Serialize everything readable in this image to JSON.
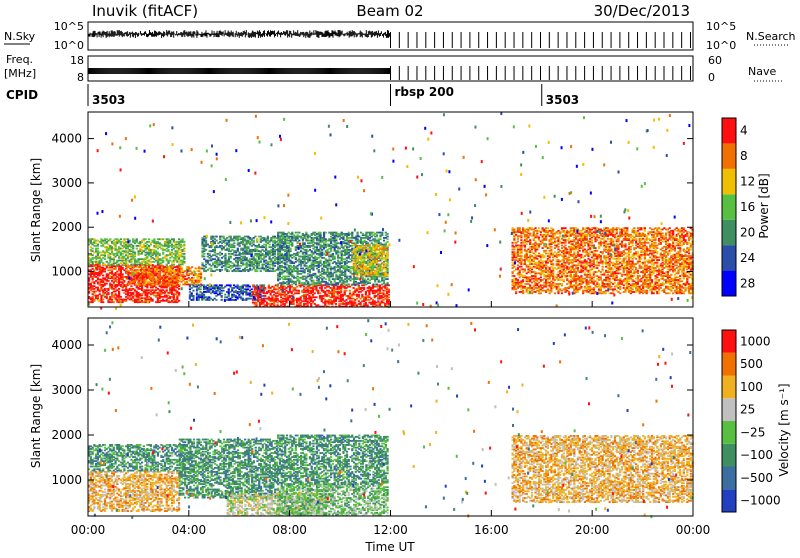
{
  "header": {
    "station": "Inuvik (fitACF)",
    "beam": "Beam 02",
    "date": "30/Dec/2013"
  },
  "top_panels": {
    "nsky_label": "N.Sky",
    "nsky_ticks": [
      "10^5",
      "10^0"
    ],
    "nsky_right_ticks": [
      "10^5",
      "10^0"
    ],
    "nsearch_label": "N.Search",
    "freq_label_1": "Freq.",
    "freq_label_2": "[MHz]",
    "freq_ticks": [
      "18",
      "8"
    ],
    "nave_ticks": [
      "60",
      "0"
    ],
    "nave_label": "Nave",
    "cpid_label": "CPID",
    "cpid_entries": [
      {
        "label": "3503",
        "start_hour": 0.0
      },
      {
        "label": "rbsp 200",
        "start_hour": 12.0
      },
      {
        "label": "3503",
        "start_hour": 18.0
      }
    ]
  },
  "time_axis": {
    "ticks": [
      "00:00",
      "04:00",
      "08:00",
      "12:00",
      "16:00",
      "20:00",
      "00:00"
    ],
    "label": "Time UT"
  },
  "chart_data": [
    {
      "type": "heatmap",
      "title": "Power",
      "ylabel": "Slant Range [km]",
      "xlabel": "",
      "xlim": [
        0,
        24
      ],
      "ylim": [
        200,
        4600
      ],
      "yticks": [
        "1000",
        "2000",
        "3000",
        "4000"
      ],
      "colorbar": {
        "label": "Power [dB]",
        "ticks": [
          "4",
          "8",
          "12",
          "16",
          "20",
          "24",
          "28"
        ],
        "colors": [
          "#0000ff",
          "#2b4fa8",
          "#3f8f60",
          "#58c040",
          "#f0c000",
          "#f07000",
          "#ff1010"
        ]
      },
      "regions": [
        {
          "t0": 0.0,
          "t1": 3.6,
          "r0": 300,
          "r1": 1150,
          "level": 6
        },
        {
          "t0": 0.0,
          "t1": 3.8,
          "r0": 1150,
          "r1": 1750,
          "level": 3
        },
        {
          "t0": 1.5,
          "t1": 4.5,
          "r0": 700,
          "r1": 1100,
          "level": 5
        },
        {
          "t0": 4.0,
          "t1": 7.0,
          "r0": 350,
          "r1": 700,
          "level": 1
        },
        {
          "t0": 4.5,
          "t1": 8.0,
          "r0": 1000,
          "r1": 1800,
          "level": 2
        },
        {
          "t0": 6.5,
          "t1": 11.9,
          "r0": 200,
          "r1": 700,
          "level": 6
        },
        {
          "t0": 7.5,
          "t1": 11.9,
          "r0": 700,
          "r1": 1900,
          "level": 2
        },
        {
          "t0": 10.5,
          "t1": 11.9,
          "r0": 900,
          "r1": 1600,
          "level": 4
        },
        {
          "t0": 16.8,
          "t1": 24.0,
          "r0": 500,
          "r1": 2000,
          "level": 5
        }
      ]
    },
    {
      "type": "heatmap",
      "title": "Velocity",
      "ylabel": "Slant Range [km]",
      "xlabel": "Time UT",
      "xlim": [
        0,
        24
      ],
      "ylim": [
        200,
        4600
      ],
      "yticks": [
        "1000",
        "2000",
        "3000",
        "4000"
      ],
      "colorbar": {
        "label": "Velocity [m s⁻¹]",
        "ticks": [
          "1000",
          "500",
          "100",
          "25",
          "−25",
          "−100",
          "−500",
          "−1000"
        ],
        "colors": [
          "#2040c0",
          "#3a6fa0",
          "#3f8f60",
          "#58c040",
          "#c0c0c0",
          "#f0b020",
          "#f07000",
          "#ff1010"
        ]
      },
      "regions": [
        {
          "t0": 0.0,
          "t1": 3.6,
          "r0": 300,
          "r1": 1200,
          "level": 5
        },
        {
          "t0": 0.0,
          "t1": 3.8,
          "r0": 1200,
          "r1": 1800,
          "level": 2
        },
        {
          "t0": 3.6,
          "t1": 7.5,
          "r0": 600,
          "r1": 1900,
          "level": 2
        },
        {
          "t0": 5.5,
          "t1": 9.5,
          "r0": 200,
          "r1": 700,
          "level": 4
        },
        {
          "t0": 7.5,
          "t1": 11.9,
          "r0": 200,
          "r1": 900,
          "level": 3
        },
        {
          "t0": 7.5,
          "t1": 11.9,
          "r0": 900,
          "r1": 2000,
          "level": 2
        },
        {
          "t0": 16.8,
          "t1": 24.0,
          "r0": 500,
          "r1": 2000,
          "level": 5
        }
      ]
    }
  ]
}
